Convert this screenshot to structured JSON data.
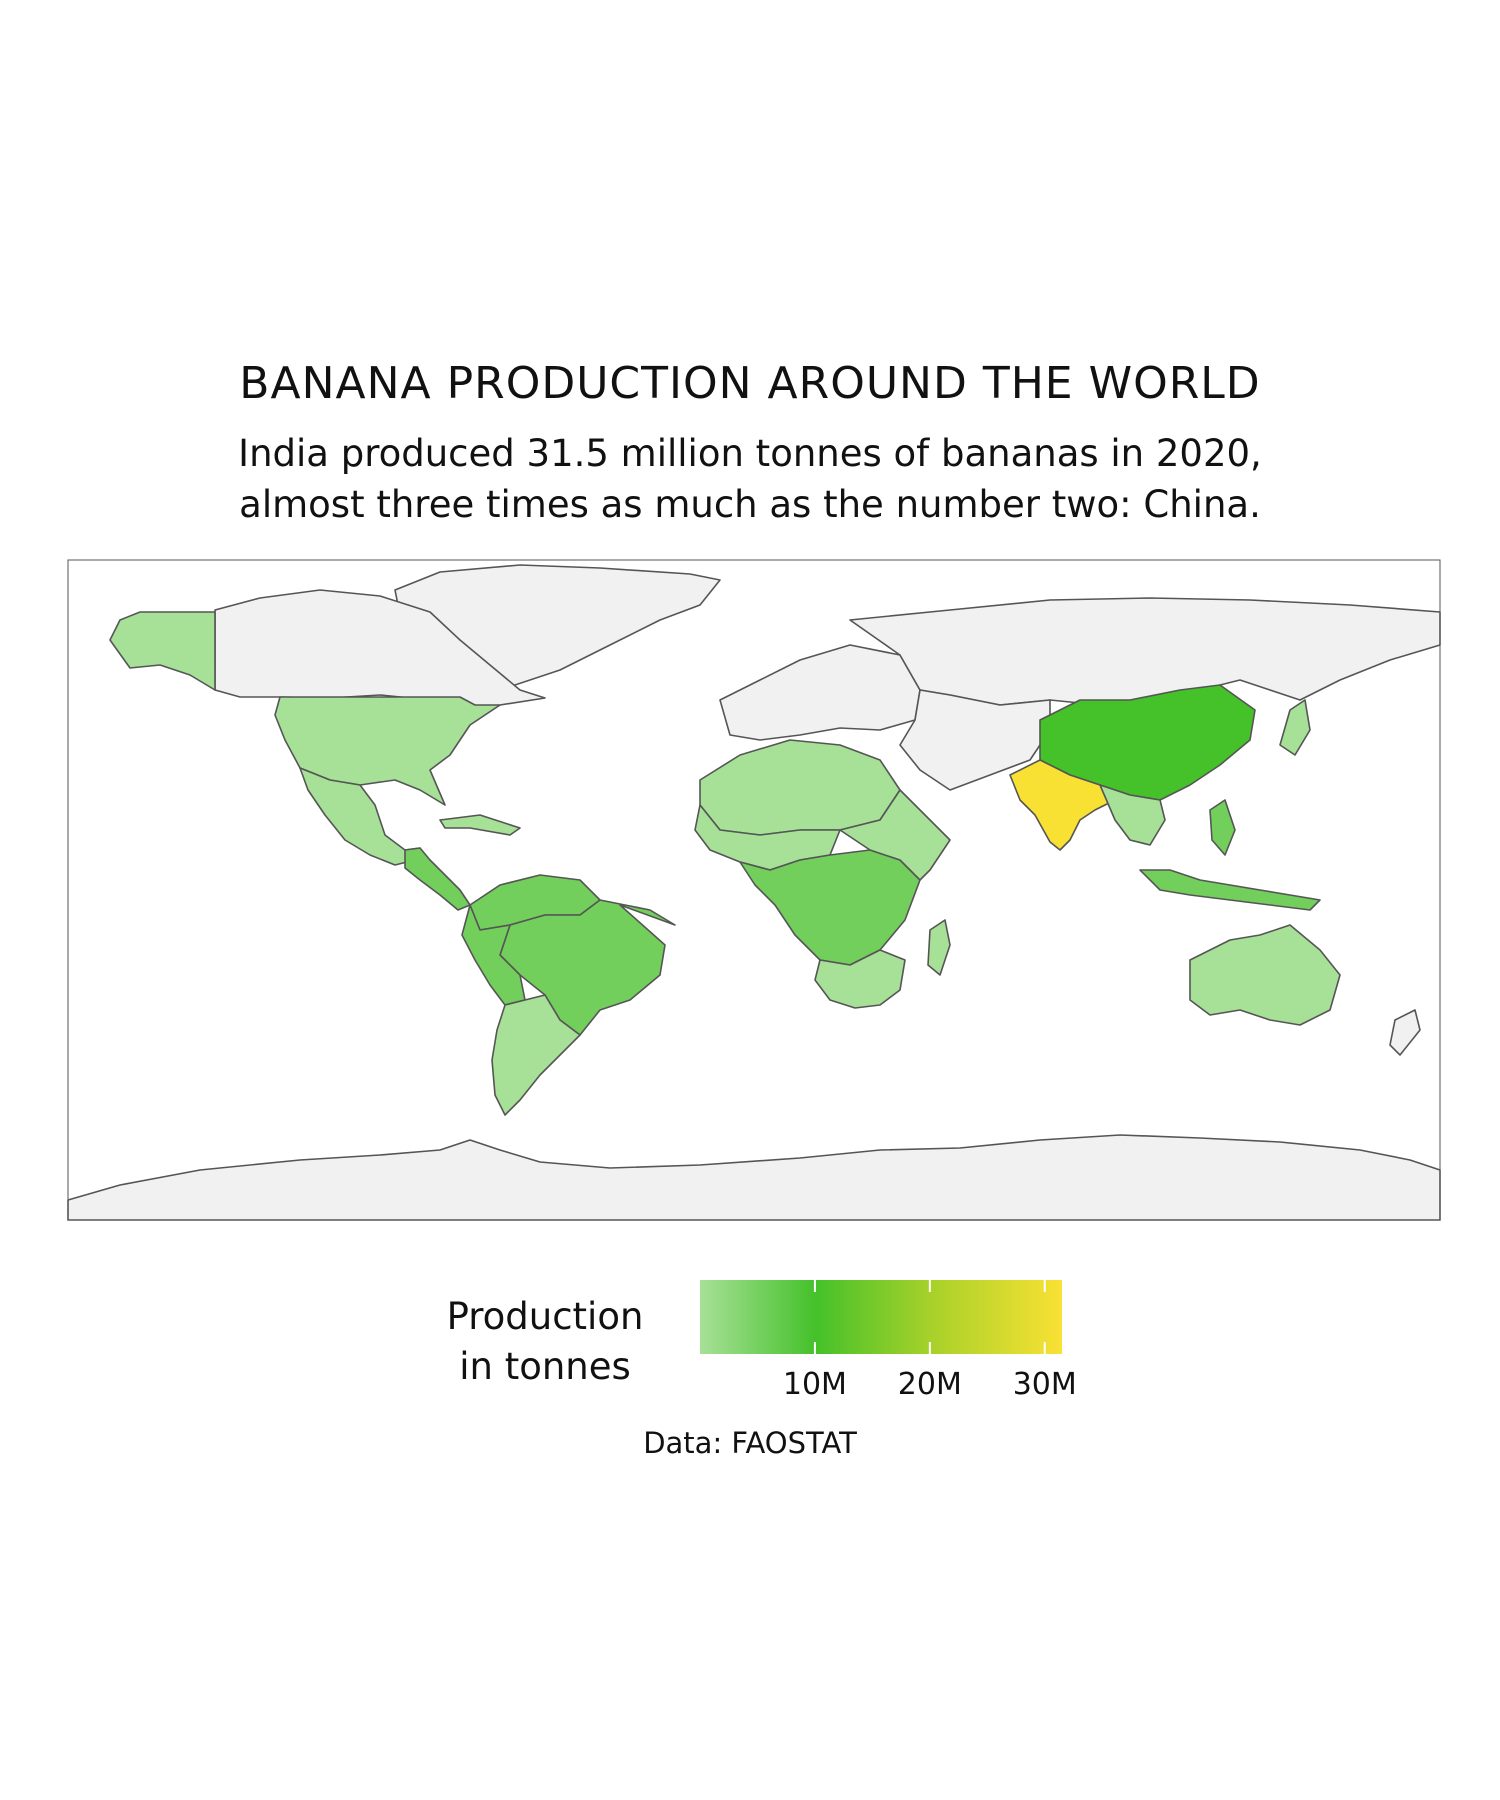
{
  "title": "BANANA PRODUCTION AROUND THE WORLD",
  "subtitle_lines": [
    "India produced 31.5 million tonnes of bananas in 2020,",
    "almost three times as much as the number two: China."
  ],
  "legend": {
    "title_lines": [
      "Production",
      "in tonnes"
    ],
    "ticks": [
      "10M",
      "20M",
      "30M"
    ],
    "tick_values": [
      10000000,
      20000000,
      30000000
    ],
    "min_value": 0,
    "max_value": 31500000,
    "gradient_colors": [
      "#a7e097",
      "#45c12a",
      "#a8d12a",
      "#f9e133"
    ]
  },
  "caption": "Data: FAOSTAT",
  "colors": {
    "no_data": "#f1f1f1",
    "border": "#555555",
    "low": "#a7e097",
    "mid": "#72cf5c",
    "china": "#45c12a",
    "india": "#f9e133"
  },
  "chart_data": {
    "type": "choropleth",
    "metric": "Banana production in tonnes, 2020",
    "highlighted": [
      {
        "name": "India",
        "value": 31500000
      },
      {
        "name": "China",
        "value": 11500000
      }
    ]
  }
}
